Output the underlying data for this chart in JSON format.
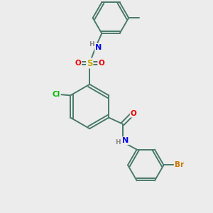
{
  "bg_color": "#ececec",
  "bond_color": "#4a7a6a",
  "bond_width": 1.4,
  "atom_colors": {
    "H": "#888888",
    "N": "#0000ee",
    "O": "#ee0000",
    "S": "#ccaa00",
    "Cl": "#00bb00",
    "Br": "#cc7700",
    "C": "#4a7a6a"
  },
  "font_size": 7.5
}
